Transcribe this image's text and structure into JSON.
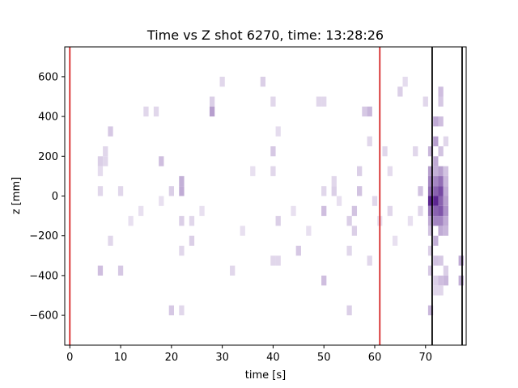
{
  "chart_data": {
    "type": "heatmap",
    "title": "Time vs Z shot 6270, time: 13:28:26",
    "xlabel": "time [s]",
    "ylabel": "z [mm]",
    "xlim": [
      -1,
      78
    ],
    "ylim": [
      -750,
      750
    ],
    "x_ticks": [
      0,
      10,
      20,
      30,
      40,
      50,
      60,
      70
    ],
    "y_ticks": [
      -600,
      -400,
      -200,
      0,
      200,
      400,
      600
    ],
    "x_tick_labels": [
      "0",
      "10",
      "20",
      "30",
      "40",
      "50",
      "60",
      "70"
    ],
    "y_tick_labels": [
      "−600",
      "−400",
      "−200",
      "0",
      "200",
      "400",
      "600"
    ],
    "colormap": "Purples",
    "bin_width_s": 1.0,
    "bin_height_mm": 50,
    "cells": [
      [
        6,
        25,
        0.12
      ],
      [
        6,
        175,
        0.15
      ],
      [
        7,
        175,
        0.12
      ],
      [
        7,
        225,
        0.12
      ],
      [
        8,
        325,
        0.18
      ],
      [
        10,
        25,
        0.12
      ],
      [
        6,
        -375,
        0.22
      ],
      [
        10,
        -375,
        0.18
      ],
      [
        8,
        -225,
        0.12
      ],
      [
        6,
        125,
        0.1
      ],
      [
        15,
        425,
        0.12
      ],
      [
        17,
        425,
        0.12
      ],
      [
        18,
        175,
        0.22
      ],
      [
        20,
        25,
        0.15
      ],
      [
        22,
        75,
        0.28
      ],
      [
        22,
        25,
        0.3
      ],
      [
        22,
        -125,
        0.15
      ],
      [
        24,
        -125,
        0.12
      ],
      [
        24,
        -225,
        0.15
      ],
      [
        22,
        -275,
        0.12
      ],
      [
        20,
        -575,
        0.18
      ],
      [
        22,
        -575,
        0.12
      ],
      [
        28,
        475,
        0.15
      ],
      [
        28,
        425,
        0.35
      ],
      [
        30,
        575,
        0.12
      ],
      [
        32,
        -375,
        0.12
      ],
      [
        38,
        575,
        0.15
      ],
      [
        40,
        475,
        0.12
      ],
      [
        40,
        225,
        0.18
      ],
      [
        41,
        325,
        0.1
      ],
      [
        40,
        125,
        0.12
      ],
      [
        41,
        -125,
        0.15
      ],
      [
        40,
        -325,
        0.12
      ],
      [
        41,
        -325,
        0.12
      ],
      [
        45,
        -275,
        0.18
      ],
      [
        49,
        475,
        0.12
      ],
      [
        50,
        475,
        0.12
      ],
      [
        50,
        25,
        0.12
      ],
      [
        50,
        -75,
        0.22
      ],
      [
        50,
        -425,
        0.22
      ],
      [
        52,
        75,
        0.12
      ],
      [
        52,
        25,
        0.15
      ],
      [
        55,
        -125,
        0.15
      ],
      [
        55,
        -275,
        0.12
      ],
      [
        55,
        -575,
        0.15
      ],
      [
        56,
        -175,
        0.15
      ],
      [
        56,
        -75,
        0.2
      ],
      [
        57,
        25,
        0.2
      ],
      [
        57,
        125,
        0.15
      ],
      [
        58,
        425,
        0.18
      ],
      [
        59,
        425,
        0.25
      ],
      [
        59,
        275,
        0.12
      ],
      [
        59,
        -325,
        0.12
      ],
      [
        60,
        -25,
        0.12
      ],
      [
        62,
        225,
        0.12
      ],
      [
        63,
        125,
        0.1
      ],
      [
        63,
        -75,
        0.12
      ],
      [
        65,
        525,
        0.15
      ],
      [
        66,
        575,
        0.1
      ],
      [
        68,
        225,
        0.12
      ],
      [
        69,
        25,
        0.2
      ],
      [
        69,
        -75,
        0.12
      ],
      [
        70,
        475,
        0.12
      ],
      [
        71,
        225,
        0.25
      ],
      [
        71,
        125,
        0.35
      ],
      [
        71,
        75,
        0.45
      ],
      [
        71,
        25,
        0.55
      ],
      [
        71,
        -25,
        0.85
      ],
      [
        71,
        -75,
        0.5
      ],
      [
        71,
        -125,
        0.3
      ],
      [
        71,
        -175,
        0.2
      ],
      [
        71,
        -275,
        0.15
      ],
      [
        71,
        -375,
        0.18
      ],
      [
        71,
        -575,
        0.25
      ],
      [
        72,
        275,
        0.35
      ],
      [
        72,
        375,
        0.3
      ],
      [
        72,
        175,
        0.3
      ],
      [
        72,
        125,
        0.28
      ],
      [
        72,
        75,
        0.45
      ],
      [
        72,
        25,
        0.6
      ],
      [
        72,
        -25,
        0.85
      ],
      [
        72,
        -75,
        0.6
      ],
      [
        72,
        -125,
        0.45
      ],
      [
        72,
        -225,
        0.28
      ],
      [
        72,
        -325,
        0.2
      ],
      [
        72,
        -425,
        0.15
      ],
      [
        72,
        -475,
        0.12
      ],
      [
        73,
        525,
        0.22
      ],
      [
        73,
        475,
        0.18
      ],
      [
        73,
        375,
        0.22
      ],
      [
        73,
        225,
        0.2
      ],
      [
        73,
        125,
        0.35
      ],
      [
        73,
        75,
        0.55
      ],
      [
        73,
        25,
        0.7
      ],
      [
        73,
        -25,
        0.6
      ],
      [
        73,
        -75,
        0.65
      ],
      [
        73,
        -125,
        0.45
      ],
      [
        73,
        -175,
        0.3
      ],
      [
        73,
        -325,
        0.18
      ],
      [
        73,
        -425,
        0.22
      ],
      [
        73,
        -475,
        0.12
      ],
      [
        74,
        275,
        0.12
      ],
      [
        74,
        125,
        0.2
      ],
      [
        74,
        75,
        0.25
      ],
      [
        74,
        25,
        0.3
      ],
      [
        74,
        -25,
        0.35
      ],
      [
        74,
        -75,
        0.4
      ],
      [
        74,
        -125,
        0.3
      ],
      [
        74,
        -175,
        0.25
      ],
      [
        74,
        -375,
        0.15
      ],
      [
        74,
        -425,
        0.25
      ],
      [
        77,
        -325,
        0.3
      ],
      [
        77,
        -425,
        0.28
      ],
      [
        12,
        -125,
        0.08
      ],
      [
        14,
        -75,
        0.08
      ],
      [
        18,
        -25,
        0.08
      ],
      [
        26,
        -75,
        0.08
      ],
      [
        34,
        -175,
        0.08
      ],
      [
        36,
        125,
        0.08
      ],
      [
        44,
        -75,
        0.08
      ],
      [
        47,
        -175,
        0.08
      ],
      [
        53,
        -25,
        0.08
      ],
      [
        61,
        -125,
        0.08
      ],
      [
        64,
        -225,
        0.08
      ],
      [
        67,
        -125,
        0.08
      ]
    ],
    "vlines": [
      {
        "x": 0,
        "color": "#d62728"
      },
      {
        "x": 61,
        "color": "#d62728"
      },
      {
        "x": 71.3,
        "color": "#000000"
      },
      {
        "x": 77.2,
        "color": "#000000"
      }
    ],
    "legend": "none",
    "grid": false
  }
}
